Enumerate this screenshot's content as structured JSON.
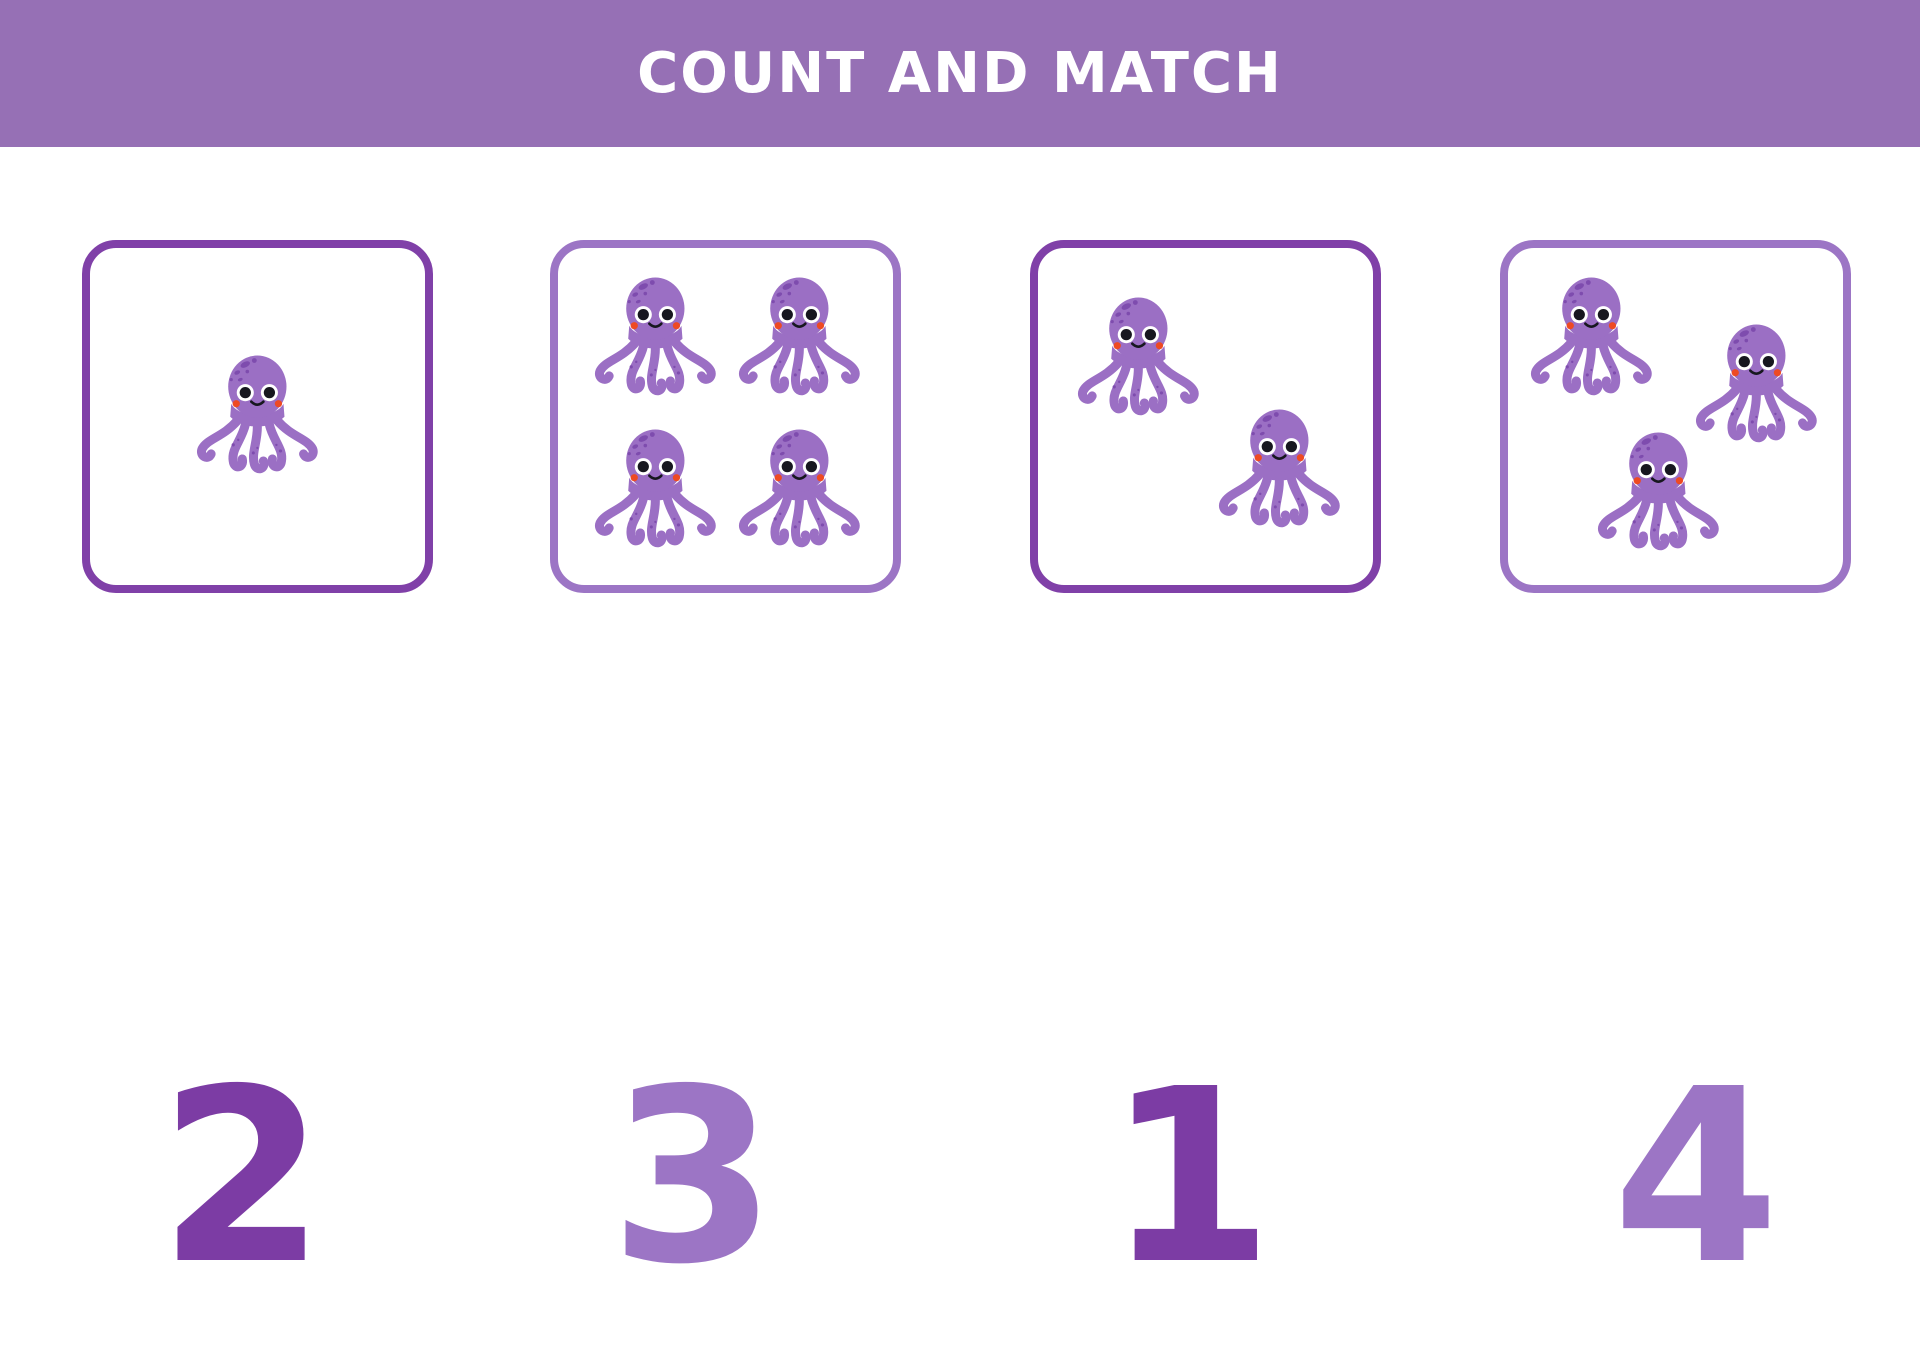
{
  "header": {
    "title": "COUNT AND MATCH"
  },
  "game": {
    "type": "count-and-match",
    "item": "octopus",
    "cards": [
      {
        "id": 1,
        "count": 1,
        "item": "octopus",
        "border_style": "dark"
      },
      {
        "id": 2,
        "count": 4,
        "item": "octopus",
        "border_style": "light"
      },
      {
        "id": 3,
        "count": 2,
        "item": "octopus",
        "border_style": "dark"
      },
      {
        "id": 4,
        "count": 3,
        "item": "octopus",
        "border_style": "light"
      }
    ],
    "answers": [
      {
        "value": "2",
        "color_style": "dark"
      },
      {
        "value": "3",
        "color_style": "light"
      },
      {
        "value": "1",
        "color_style": "dark"
      },
      {
        "value": "4",
        "color_style": "light"
      }
    ]
  },
  "colors": {
    "banner": "#9670b5",
    "banner_text": "#ffffff",
    "purple_dark": "#7c3ca4",
    "purple_dark_border": "#8040a8",
    "purple_light": "#9c75c5",
    "octopus_body": "#9b6fc4",
    "octopus_spots": "#7e4cae",
    "octopus_cheek": "#ee4a23",
    "ink": "#17171f",
    "background": "#ffffff"
  }
}
